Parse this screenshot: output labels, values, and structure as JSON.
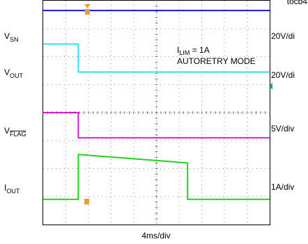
{
  "figure_id": "tocb4",
  "chart_data": {
    "type": "line",
    "title": "",
    "x_axis_label": "4ms/div",
    "annotation_line1_main": "I",
    "annotation_line1_sub": "LIM",
    "annotation_line1_value": " = 1A",
    "annotation_line2": "AUTORETRY MODE",
    "x_divisions": 10,
    "y_divisions": 8,
    "x_range_ms": [
      0,
      40
    ],
    "series": [
      {
        "name": "VSN",
        "label_main": "V",
        "label_sub": "SN",
        "label_overline": false,
        "scale": "20V/di",
        "color": "#1414dc",
        "x_ms": [
          0,
          40
        ],
        "y_div": [
          7.65,
          7.65
        ]
      },
      {
        "name": "VOUT",
        "label_main": "V",
        "label_sub": "OUT",
        "label_overline": false,
        "scale": "20V/di",
        "color": "#2ee0f2",
        "x_ms": [
          0,
          6.2,
          6.2,
          40
        ],
        "y_div": [
          6.45,
          6.45,
          5.45,
          5.45
        ]
      },
      {
        "name": "VFLAG",
        "label_main": "V",
        "label_sub": "FLAG",
        "label_overline": true,
        "scale": "5V/div",
        "color": "#d21ed2",
        "x_ms": [
          0,
          6.2,
          6.2,
          40
        ],
        "y_div": [
          4.0,
          4.0,
          3.1,
          3.1
        ]
      },
      {
        "name": "IOUT",
        "label_main": "I",
        "label_sub": "OUT",
        "label_overline": false,
        "scale": "1A/div",
        "color": "#1ed21e",
        "x_ms": [
          0,
          6.2,
          6.2,
          6.5,
          25.5,
          25.5,
          40
        ],
        "y_div": [
          0.9,
          0.9,
          2.5,
          2.5,
          2.2,
          0.9,
          0.9
        ]
      }
    ]
  }
}
